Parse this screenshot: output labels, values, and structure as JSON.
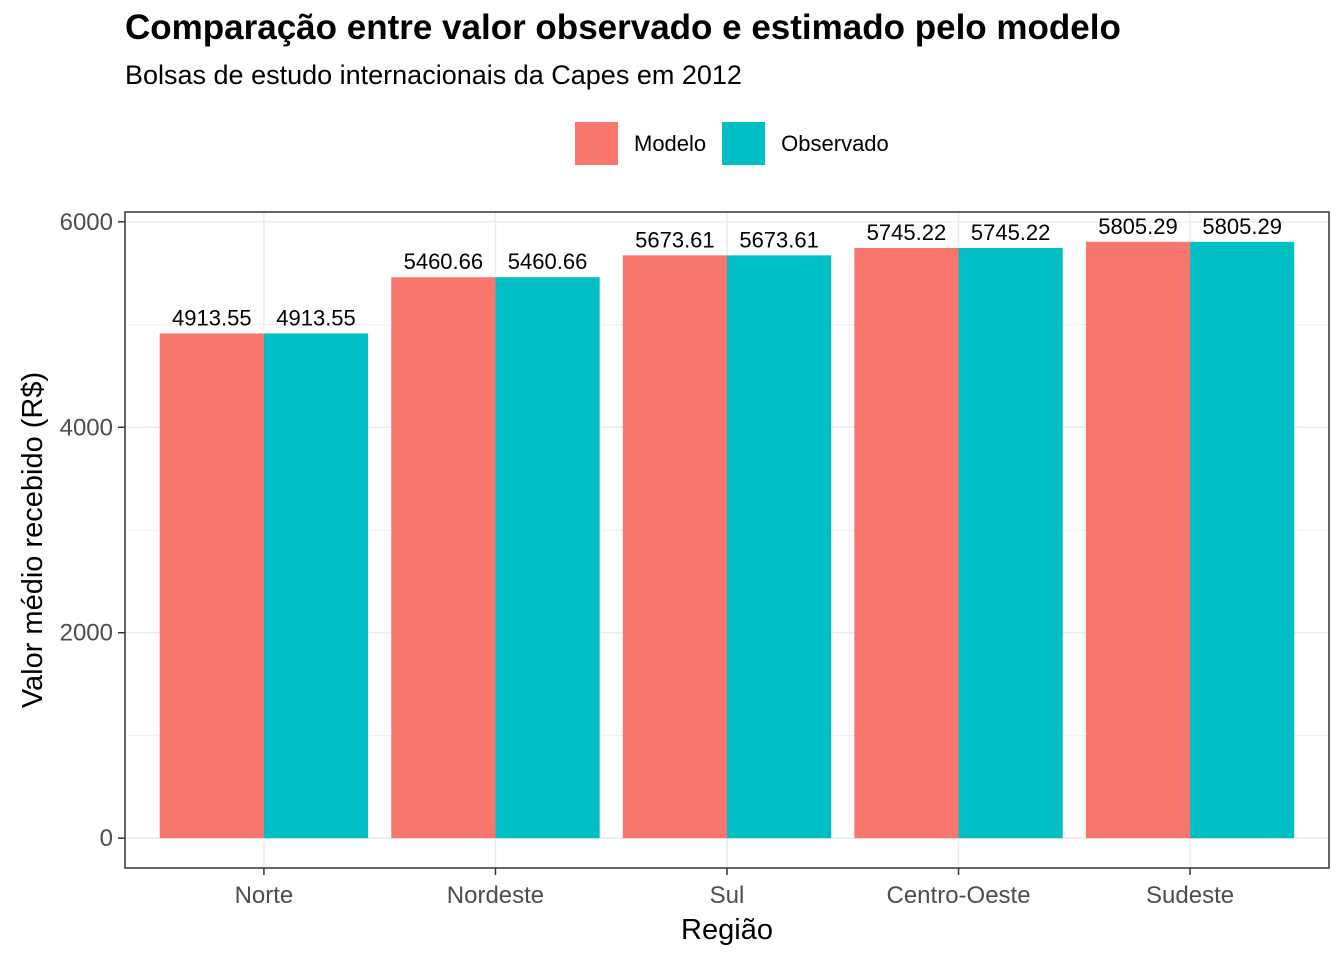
{
  "chart_data": {
    "type": "bar",
    "title": "Comparação entre valor observado e estimado pelo modelo",
    "subtitle": "Bolsas de estudo internacionais da Capes em 2012",
    "xlabel": "Região",
    "ylabel": "Valor médio recebido (R$)",
    "categories": [
      "Norte",
      "Nordeste",
      "Sul",
      "Centro-Oeste",
      "Sudeste"
    ],
    "series": [
      {
        "name": "Modelo",
        "color": "#F8766D",
        "values": [
          4913.55,
          5460.66,
          5673.61,
          5745.22,
          5805.29
        ],
        "labels": [
          "4913.55",
          "5460.66",
          "5673.61",
          "5745.22",
          "5805.29"
        ]
      },
      {
        "name": "Observado",
        "color": "#00BFC4",
        "values": [
          4913.55,
          5460.66,
          5673.61,
          5745.22,
          5805.29
        ],
        "labels": [
          "4913.55",
          "5460.66",
          "5673.61",
          "5745.22",
          "5805.29"
        ]
      }
    ],
    "ylim": [
      -290.26,
      6095.55
    ],
    "yticks": [
      0,
      2000,
      4000,
      6000
    ],
    "legend_position": "top",
    "grid": true
  }
}
